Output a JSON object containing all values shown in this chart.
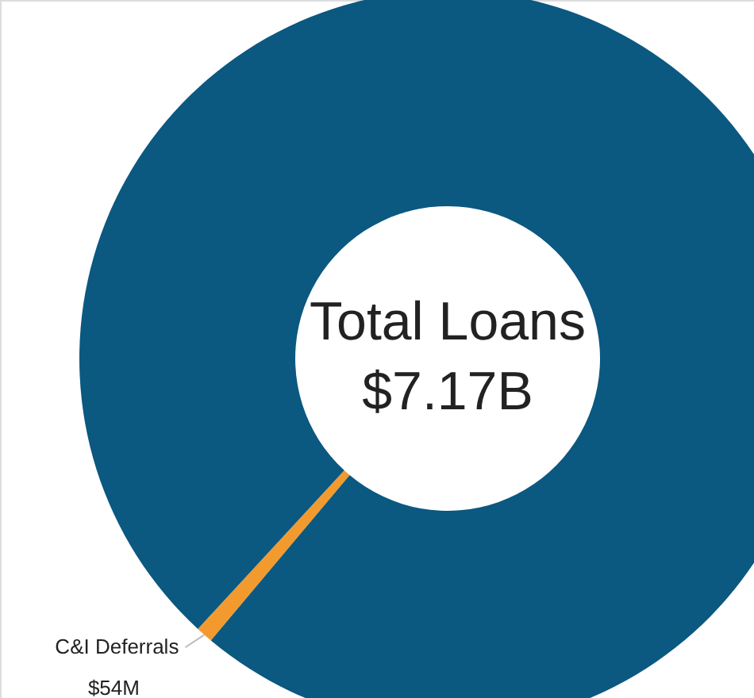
{
  "chart_data": {
    "type": "donut",
    "categories": [
      "C&I Deferrals",
      null
    ],
    "values": [
      54,
      7116
    ],
    "colors": [
      "#f39a2e",
      "#0b5880"
    ],
    "value_labels": [
      "$54M",
      null
    ],
    "annotations": [
      "Total Loans",
      "$7.17B"
    ],
    "legend": false
  }
}
